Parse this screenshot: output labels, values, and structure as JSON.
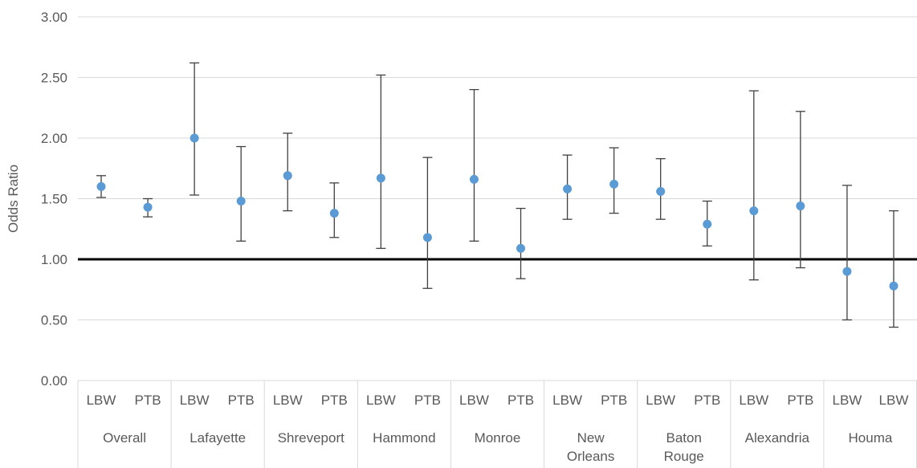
{
  "chart_data": {
    "type": "scatter",
    "title": "",
    "ylabel": "Odds Ratio",
    "xlabel": "",
    "ylim": [
      0,
      3
    ],
    "y_ticks": [
      "0.00",
      "0.50",
      "1.00",
      "1.50",
      "2.00",
      "2.50",
      "3.00"
    ],
    "grid": true,
    "reference_line": 1.0,
    "error_bars": true,
    "groups": [
      {
        "name": "Overall",
        "categories": [
          "LBW",
          "PTB"
        ],
        "values": [
          1.6,
          1.43
        ],
        "lower": [
          1.51,
          1.35
        ],
        "upper": [
          1.69,
          1.5
        ]
      },
      {
        "name": "Lafayette",
        "categories": [
          "LBW",
          "PTB"
        ],
        "values": [
          2.0,
          1.48
        ],
        "lower": [
          1.53,
          1.15
        ],
        "upper": [
          2.62,
          1.93
        ]
      },
      {
        "name": "Shreveport",
        "categories": [
          "LBW",
          "PTB"
        ],
        "values": [
          1.69,
          1.38
        ],
        "lower": [
          1.4,
          1.18
        ],
        "upper": [
          2.04,
          1.63
        ]
      },
      {
        "name": "Hammond",
        "categories": [
          "LBW",
          "PTB"
        ],
        "values": [
          1.67,
          1.18
        ],
        "lower": [
          1.09,
          0.76
        ],
        "upper": [
          2.52,
          1.84
        ]
      },
      {
        "name": "Monroe",
        "categories": [
          "LBW",
          "PTB"
        ],
        "values": [
          1.66,
          1.09
        ],
        "lower": [
          1.15,
          0.84
        ],
        "upper": [
          2.4,
          1.42
        ]
      },
      {
        "name": "New Orleans",
        "categories": [
          "LBW",
          "PTB"
        ],
        "values": [
          1.58,
          1.62
        ],
        "lower": [
          1.33,
          1.38
        ],
        "upper": [
          1.86,
          1.92
        ]
      },
      {
        "name": "Baton Rouge",
        "categories": [
          "LBW",
          "PTB"
        ],
        "values": [
          1.56,
          1.29
        ],
        "lower": [
          1.33,
          1.11
        ],
        "upper": [
          1.83,
          1.48
        ]
      },
      {
        "name": "Alexandria",
        "categories": [
          "LBW",
          "PTB"
        ],
        "values": [
          1.4,
          1.44
        ],
        "lower": [
          0.83,
          0.93
        ],
        "upper": [
          2.39,
          2.22
        ]
      },
      {
        "name": "Houma",
        "categories": [
          "LBW",
          "LBW"
        ],
        "values": [
          0.9,
          0.78
        ],
        "lower": [
          0.5,
          0.44
        ],
        "upper": [
          1.61,
          1.4
        ]
      }
    ],
    "colors": {
      "point": "#5B9BD5",
      "error_bar": "#404040",
      "grid": "#D9D9D9",
      "reference_line": "#000000",
      "text": "#595959"
    }
  }
}
